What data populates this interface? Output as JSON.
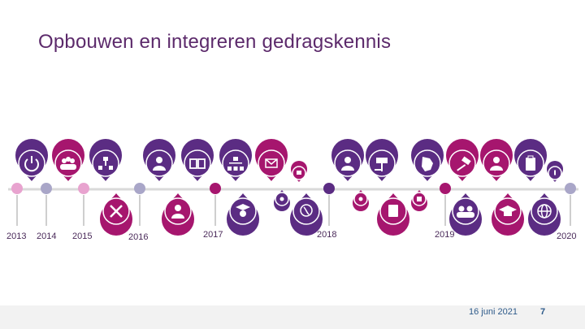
{
  "slide": {
    "title": "Opbouwen en integreren gedragskennis",
    "years": [
      "2013",
      "2014",
      "2015",
      "2016",
      "2017",
      "2018",
      "2019",
      "2020"
    ],
    "footer": {
      "date": "16 juni 2021",
      "page_number": "7"
    }
  },
  "colors": {
    "dark_purple": "#5b2c83",
    "magenta": "#a6166e",
    "pink": "#e8a3cf",
    "lavender": "#a9a6c8",
    "timeline_line": "#d9d9d9",
    "title": "#5c2a6b"
  },
  "icons_top": [
    "power-icon",
    "group-icon",
    "org-chart-icon",
    "person-icon",
    "book-icon",
    "hierarchy-icon",
    "envelope-icon",
    "small-square-icon",
    "person-icon",
    "sign-icon",
    "map-icon",
    "gavel-icon",
    "person-icon",
    "clipboard-icon",
    "info-icon"
  ],
  "icons_bottom": [
    "tools-icon",
    "person-icon",
    "graduate-icon",
    "dot-icon",
    "brain-icon",
    "document-icon",
    "building-icon",
    "money-icon",
    "group-icon",
    "graduation-cap-icon",
    "globe-icon"
  ]
}
